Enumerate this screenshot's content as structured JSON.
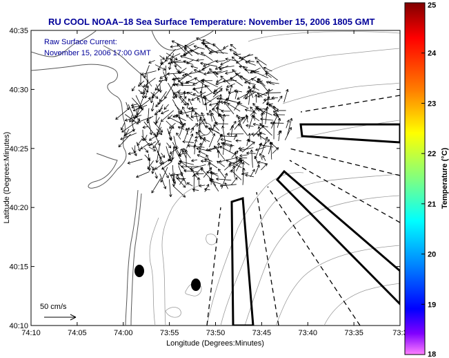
{
  "title": "RU COOL  NOAA–18  Sea Surface Temperature:  November 15, 2006 1805 GMT",
  "current_label_line1": "Raw Surface Current:",
  "current_label_line2": "November 15, 2006 17:00 GMT",
  "scale_label": "50 cm/s",
  "x_axis_label": "Longitude (Degrees:Minutes)",
  "y_axis_label": "Latitude (Degrees:Minutes)",
  "colorbar_label": "Temperature (°C)",
  "x_ticks": [
    "74:10",
    "74:05",
    "74:00",
    "73:55",
    "73:50",
    "73:45",
    "73:40",
    "73:35",
    "73:3"
  ],
  "y_ticks": [
    "40:35",
    "40:30",
    "40:25",
    "40:20",
    "40:15",
    "40:10"
  ],
  "colorbar_ticks": [
    "25",
    "24",
    "23",
    "22",
    "21",
    "20",
    "19",
    "18"
  ],
  "colors": {
    "title": "#000099",
    "annotation": "#000099",
    "coastline": "#555555",
    "bathymetry": "#999999",
    "vectors": "#000000"
  }
}
